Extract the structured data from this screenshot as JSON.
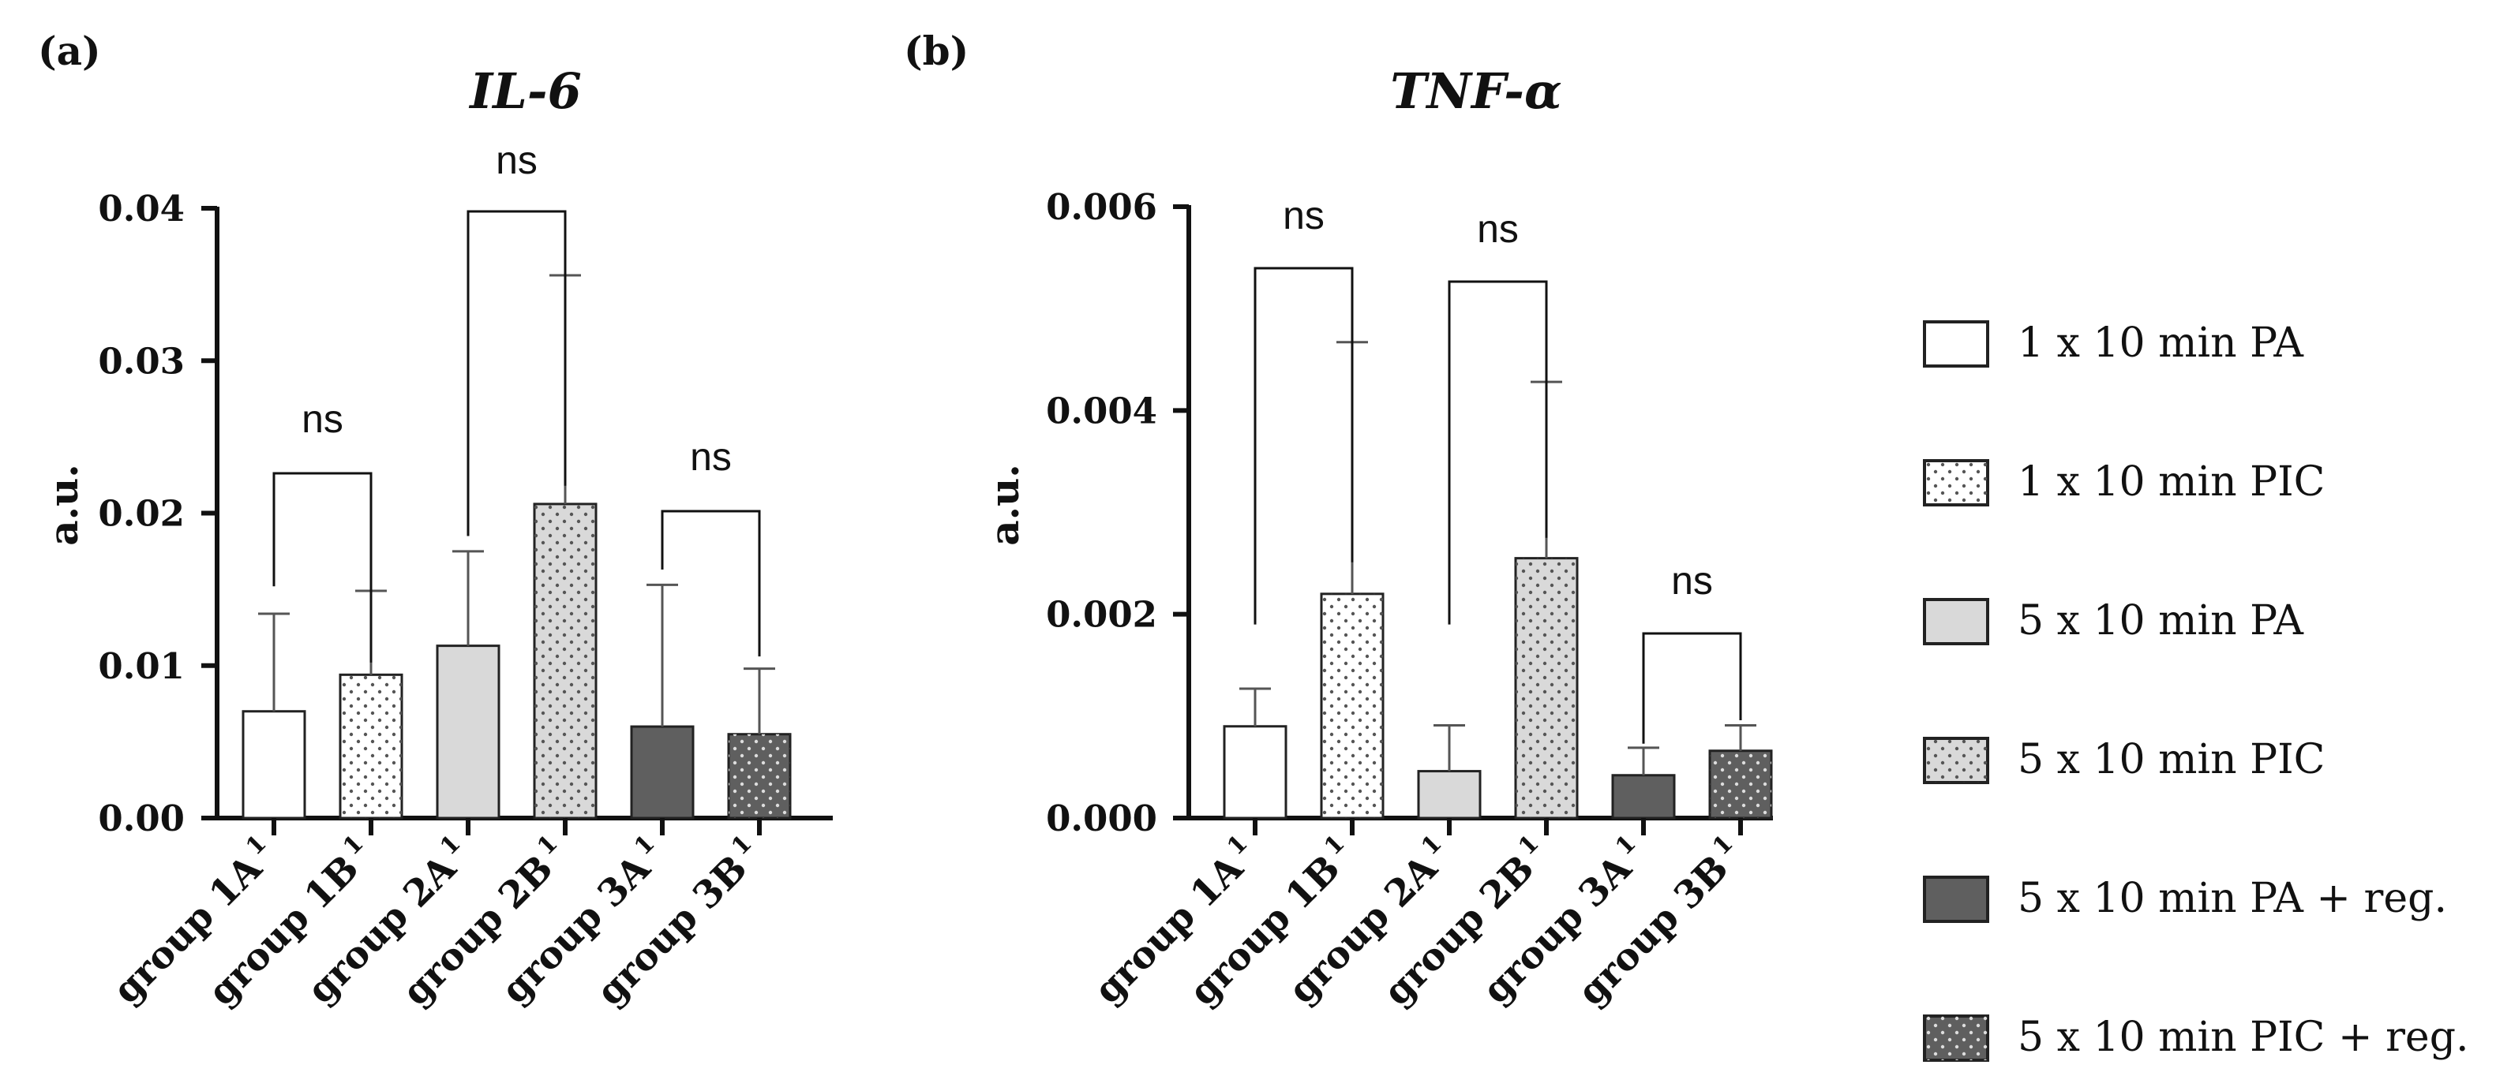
{
  "chart_data": [
    {
      "type": "bar",
      "panel_label": "(a)",
      "title": "IL-6",
      "xlabel": "",
      "ylabel": "a.u.",
      "ylim": [
        0,
        0.04
      ],
      "yticks": [
        "0.00",
        "0.01",
        "0.02",
        "0.03",
        "0.04"
      ],
      "categories": [
        "group 1A",
        "group 1B",
        "group 2A",
        "group 2B",
        "group 3A",
        "group 3B"
      ],
      "category_superscript": "1",
      "values": [
        0.007,
        0.0094,
        0.0113,
        0.0206,
        0.006,
        0.0055
      ],
      "error": [
        0.0064,
        0.0055,
        0.0062,
        0.015,
        0.0093,
        0.0043
      ],
      "comparisons": [
        {
          "from": 0,
          "to": 1,
          "label": "ns"
        },
        {
          "from": 2,
          "to": 3,
          "label": "ns"
        },
        {
          "from": 4,
          "to": 5,
          "label": "ns"
        }
      ]
    },
    {
      "type": "bar",
      "panel_label": "(b)",
      "title": "TNF-α",
      "xlabel": "",
      "ylabel": "a.u.",
      "ylim": [
        0,
        0.006
      ],
      "yticks": [
        "0.000",
        "0.002",
        "0.004",
        "0.006"
      ],
      "categories": [
        "group 1A",
        "group 1B",
        "group 2A",
        "group 2B",
        "group 3A",
        "group 3B"
      ],
      "category_superscript": "1",
      "values": [
        0.0009,
        0.0022,
        0.00046,
        0.00255,
        0.00042,
        0.00066
      ],
      "error": [
        0.00037,
        0.00247,
        0.00045,
        0.00173,
        0.00027,
        0.00025
      ],
      "comparisons": [
        {
          "from": 0,
          "to": 1,
          "label": "ns"
        },
        {
          "from": 2,
          "to": 3,
          "label": "ns"
        },
        {
          "from": 4,
          "to": 5,
          "label": "ns"
        }
      ]
    }
  ],
  "legend": [
    {
      "label": "1 x 10 min PA",
      "fill": "#ffffff",
      "dots": false,
      "dot_color": "#555555"
    },
    {
      "label": "1 x 10 min PIC",
      "fill": "#ffffff",
      "dots": true,
      "dot_color": "#555555"
    },
    {
      "label": "5 x 10 min PA",
      "fill": "#d9d9d9",
      "dots": false,
      "dot_color": "#555555"
    },
    {
      "label": "5 x 10 min PIC",
      "fill": "#d9d9d9",
      "dots": true,
      "dot_color": "#555555"
    },
    {
      "label": "5 x 10 min PA + reg.",
      "fill": "#5f5f5f",
      "dots": false,
      "dot_color": "#dddddd"
    },
    {
      "label": "5 x 10 min PIC + reg.",
      "fill": "#5f5f5f",
      "dots": true,
      "dot_color": "#dddddd"
    }
  ]
}
